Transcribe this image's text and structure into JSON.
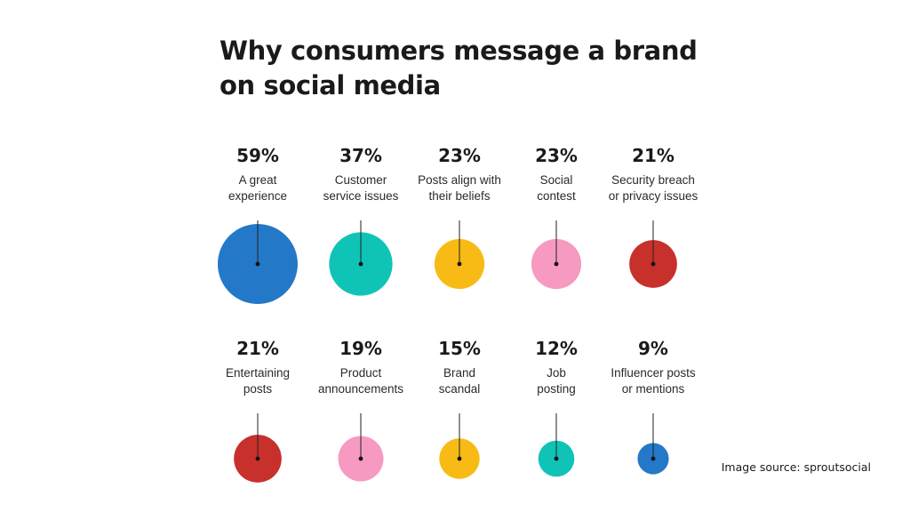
{
  "chart_data": {
    "type": "bubble",
    "title": "Why consumers message a brand on social media",
    "unit": "%",
    "items": [
      {
        "label": "A great experience",
        "value": 59,
        "color": "#2478c8"
      },
      {
        "label": "Customer service issues",
        "value": 37,
        "color": "#0fc4b6"
      },
      {
        "label": "Posts align with their beliefs",
        "value": 23,
        "color": "#f8bb16"
      },
      {
        "label": "Social contest",
        "value": 23,
        "color": "#f79ac2"
      },
      {
        "label": "Security breach or privacy issues",
        "value": 21,
        "color": "#c8302c"
      },
      {
        "label": "Entertaining posts",
        "value": 21,
        "color": "#c8302c"
      },
      {
        "label": "Product announcements",
        "value": 19,
        "color": "#f79ac2"
      },
      {
        "label": "Brand scandal",
        "value": 15,
        "color": "#f8bb16"
      },
      {
        "label": "Job posting",
        "value": 12,
        "color": "#0fc4b6"
      },
      {
        "label": "Influencer posts or mentions",
        "value": 9,
        "color": "#2478c8"
      }
    ]
  },
  "source_text": "Image source: sproutsocial"
}
